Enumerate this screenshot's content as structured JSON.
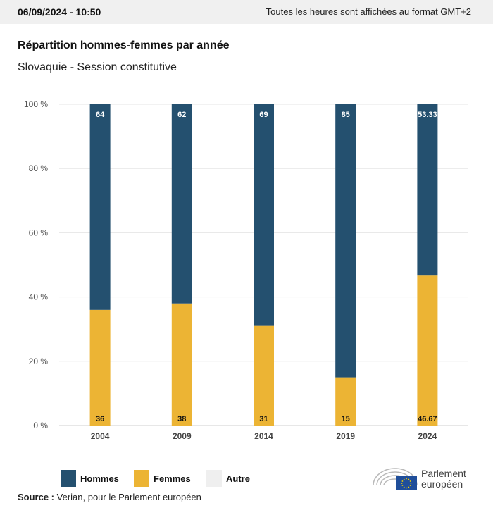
{
  "header": {
    "datetime": "06/09/2024 - 10:50",
    "timezone_note": "Toutes les heures sont affichées au format GMT+2"
  },
  "chart_data": {
    "type": "bar",
    "stacked": true,
    "title": "Répartition hommes-femmes par année",
    "subtitle": "Slovaquie - Session constitutive",
    "categories": [
      "2004",
      "2009",
      "2014",
      "2019",
      "2024"
    ],
    "series": [
      {
        "name": "Hommes",
        "color": "#24506f",
        "values": [
          64,
          62,
          69,
          85,
          53.33
        ],
        "labels": [
          "64",
          "62",
          "69",
          "85",
          "53.33"
        ]
      },
      {
        "name": "Femmes",
        "color": "#ecb434",
        "values": [
          36,
          38,
          31,
          15,
          46.67
        ],
        "labels": [
          "36",
          "38",
          "31",
          "15",
          "46.67"
        ]
      },
      {
        "name": "Autre",
        "color": "#efefef",
        "values": [
          0,
          0,
          0,
          0,
          0
        ],
        "labels": [
          "",
          "",
          "",
          "",
          ""
        ]
      }
    ],
    "ylim": [
      0,
      100
    ],
    "yticks": [
      "0 %",
      "20 %",
      "40 %",
      "60 %",
      "80 %",
      "100 %"
    ],
    "grid": true,
    "legend": "bottom-left"
  },
  "legend": {
    "items": [
      {
        "label": "Hommes",
        "color": "#24506f"
      },
      {
        "label": "Femmes",
        "color": "#ecb434"
      },
      {
        "label": "Autre",
        "color": "#efefef"
      }
    ]
  },
  "source": {
    "label": "Source :",
    "text": "Verian, pour le Parlement européen"
  },
  "logo": {
    "line1": "Parlement",
    "line2": "européen"
  }
}
